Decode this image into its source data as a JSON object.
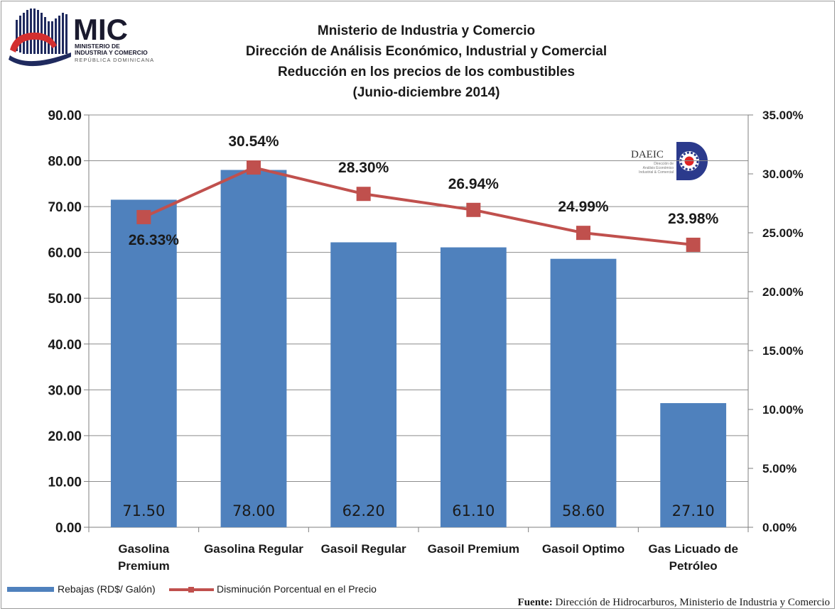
{
  "logos": {
    "mic": {
      "abbr": "MIC",
      "line1": "MINISTERIO DE",
      "line2": "INDUSTRIA Y COMERCIO",
      "line3": "REPÚBLICA DOMINICANA",
      "colors": {
        "navy": "#1f2a5e",
        "red": "#d32f2f"
      }
    },
    "daeic": {
      "abbr": "DAEIC",
      "line1": "Dirección de",
      "line2": "Análisis Económico",
      "line3": "Industrial & Comercial",
      "colors": {
        "navy": "#2b3a8c",
        "red": "#e02424"
      }
    }
  },
  "chart_data": {
    "type": "bar",
    "title_lines": [
      "Mnisterio de Industria y Comercio",
      "Dirección de Análisis Económico, Industrial y Comercial",
      "Reducción en los precios de los combustibles",
      "(Junio-diciembre 2014)"
    ],
    "categories": [
      [
        "Gasolina",
        "Premium"
      ],
      [
        "Gasolina Regular"
      ],
      [
        "Gasoil Regular"
      ],
      [
        "Gasoil Premium"
      ],
      [
        "Gasoil Optimo"
      ],
      [
        "Gas Licuado de",
        "Petróleo"
      ]
    ],
    "series": [
      {
        "name": "Rebajas (RD$/ Galón)",
        "type": "bar",
        "axis": "left",
        "color": "#4f81bd",
        "values": [
          71.5,
          78.0,
          62.2,
          61.1,
          58.6,
          27.1
        ],
        "labels": [
          "71.50",
          "78.00",
          "62.20",
          "61.10",
          "58.60",
          "27.10"
        ]
      },
      {
        "name": "Disminución Porcentual en el Precio",
        "type": "line",
        "axis": "right",
        "color": "#c0504d",
        "values": [
          26.33,
          30.54,
          28.3,
          26.94,
          24.99,
          23.98
        ],
        "labels": [
          "26.33%",
          "30.54%",
          "28.30%",
          "26.94%",
          "24.99%",
          "23.98%"
        ]
      }
    ],
    "y_left": {
      "lim": [
        0,
        90
      ],
      "ticks": [
        "0.00",
        "10.00",
        "20.00",
        "30.00",
        "40.00",
        "50.00",
        "60.00",
        "70.00",
        "80.00",
        "90.00"
      ]
    },
    "y_right": {
      "lim": [
        0,
        35
      ],
      "ticks": [
        "0.00%",
        "5.00%",
        "10.00%",
        "15.00%",
        "20.00%",
        "25.00%",
        "30.00%",
        "35.00%"
      ]
    },
    "grid": true,
    "legend_position": "bottom-left",
    "source_label": "Fuente:",
    "source_text": "Dirección de Hidrocarburos, Ministerio de Industria y Comercio"
  }
}
